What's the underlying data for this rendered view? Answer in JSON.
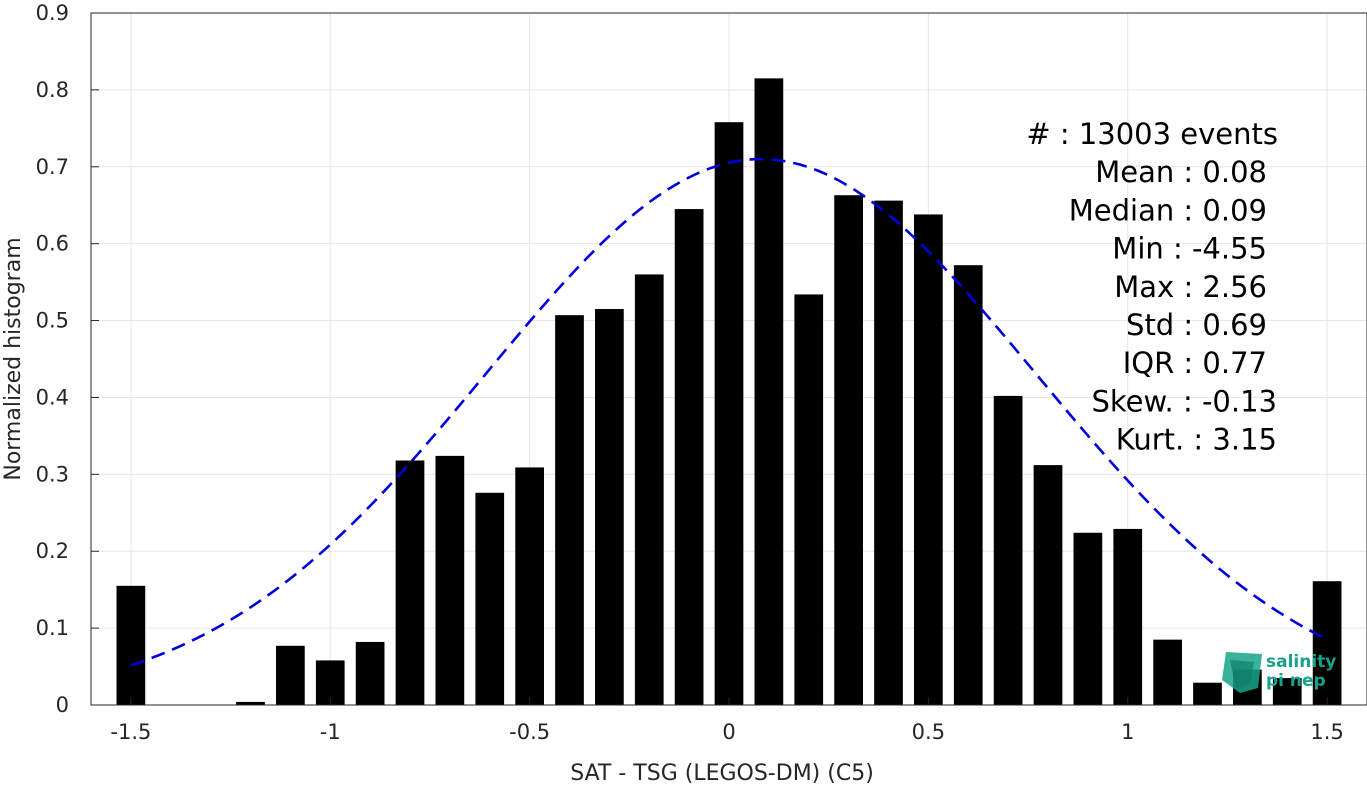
{
  "chart_data": {
    "type": "bar",
    "xlabel": "SAT - TSG (LEGOS-DM) (C5)",
    "ylabel": "Normalized histogram",
    "xlim": [
      -1.6,
      1.6
    ],
    "ylim": [
      0,
      0.9
    ],
    "xticks": [
      "-1.5",
      "-1",
      "-0.5",
      "0",
      "0.5",
      "1",
      "1.5"
    ],
    "xtick_values": [
      -1.5,
      -1,
      -0.5,
      0,
      0.5,
      1,
      1.5
    ],
    "yticks": [
      "0",
      "0.1",
      "0.2",
      "0.3",
      "0.4",
      "0.5",
      "0.6",
      "0.7",
      "0.8",
      "0.9"
    ],
    "ytick_values": [
      0,
      0.1,
      0.2,
      0.3,
      0.4,
      0.5,
      0.6,
      0.7,
      0.8,
      0.9
    ],
    "grid": true,
    "bar_color": "#000000",
    "curve_color": "#0000dd",
    "bins": {
      "x": [
        -1.5,
        -1.4,
        -1.3,
        -1.2,
        -1.1,
        -1.0,
        -0.9,
        -0.8,
        -0.7,
        -0.6,
        -0.5,
        -0.4,
        -0.3,
        -0.2,
        -0.1,
        0.0,
        0.1,
        0.2,
        0.3,
        0.4,
        0.5,
        0.6,
        0.7,
        0.8,
        0.9,
        1.0,
        1.1,
        1.2,
        1.3,
        1.4,
        1.5
      ],
      "values": [
        0.155,
        0.0,
        0.0,
        0.004,
        0.077,
        0.058,
        0.082,
        0.318,
        0.324,
        0.276,
        0.309,
        0.507,
        0.515,
        0.56,
        0.645,
        0.758,
        0.815,
        0.534,
        0.663,
        0.656,
        0.638,
        0.572,
        0.402,
        0.312,
        0.224,
        0.229,
        0.085,
        0.029,
        0.046,
        0.035,
        0.161
      ]
    },
    "fit_curve": {
      "style": "dashed",
      "mean": 0.08,
      "std": 0.69,
      "peak": 0.71,
      "x_range": [
        -1.5,
        1.5
      ]
    },
    "annotations": [
      "#  : 13003 events",
      "Mean : 0.08",
      "Median : 0.09",
      "Min : -4.55",
      "Max : 2.56",
      "Std : 0.69",
      "IQR : 0.77",
      "Skew. : -0.13",
      "Kurt. : 3.15"
    ]
  },
  "logo": {
    "line1": "salinity",
    "line2": "pi nep",
    "color": "#17a389"
  }
}
